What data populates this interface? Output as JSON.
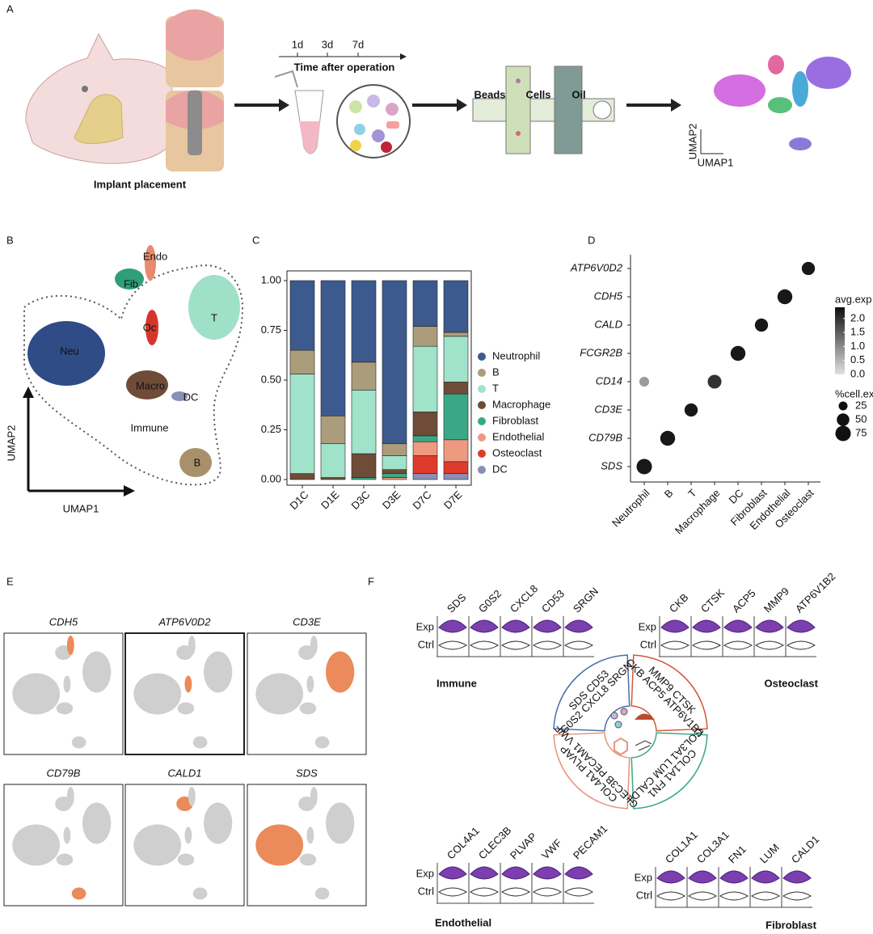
{
  "panels": [
    "A",
    "B",
    "C",
    "D",
    "E",
    "F"
  ],
  "workflow": {
    "caption": "Implant placement",
    "days": [
      "1d",
      "3d",
      "7d"
    ],
    "timeline": "Time after operation",
    "chip": [
      "Beads",
      "Cells",
      "Oil"
    ],
    "umap_y": "UMAP2",
    "umap_x": "UMAP1"
  },
  "umap": {
    "clusters": [
      "Endo",
      "Fib",
      "Oc",
      "T",
      "Neu",
      "Macro",
      "DC",
      "B"
    ],
    "group": "Immune",
    "y_label": "UMAP2",
    "x_label": "UMAP1"
  },
  "chart_data": [
    {
      "type": "bar",
      "stacked": true,
      "categories": [
        "D1C",
        "D1E",
        "D3C",
        "D3E",
        "D7C",
        "D7E"
      ],
      "series": [
        {
          "name": "Neutrophil",
          "color": "#3d5a8e",
          "values": [
            0.35,
            0.68,
            0.41,
            0.82,
            0.23,
            0.26
          ]
        },
        {
          "name": "B",
          "color": "#ab9c7c",
          "values": [
            0.12,
            0.14,
            0.14,
            0.06,
            0.1,
            0.02
          ]
        },
        {
          "name": "T",
          "color": "#a0e2ca",
          "values": [
            0.5,
            0.17,
            0.32,
            0.07,
            0.33,
            0.23
          ]
        },
        {
          "name": "Macrophage",
          "color": "#6e4c37",
          "values": [
            0.03,
            0.01,
            0.12,
            0.02,
            0.12,
            0.06
          ]
        },
        {
          "name": "Fibroblast",
          "color": "#3aa887",
          "values": [
            0,
            0,
            0.01,
            0.02,
            0.03,
            0.23
          ]
        },
        {
          "name": "Endothelial",
          "color": "#ee9a80",
          "values": [
            0,
            0,
            0,
            0.01,
            0.07,
            0.11
          ]
        },
        {
          "name": "Osteoclast",
          "color": "#de3b2b",
          "values": [
            0,
            0,
            0,
            0,
            0.09,
            0.06
          ]
        },
        {
          "name": "DC",
          "color": "#8a8fb6",
          "values": [
            0,
            0,
            0,
            0,
            0.03,
            0.03
          ]
        }
      ],
      "ylim": [
        0,
        1
      ],
      "yticks": [
        {
          "value": 0,
          "label": "0.00"
        },
        0.25,
        {
          "value": 0.5,
          "label": "0.50"
        },
        0.75,
        {
          "value": 1,
          "label": "1.00"
        }
      ]
    },
    {
      "type": "dot",
      "categories": [
        "Neutrophil",
        "B",
        "T",
        "Macrophage",
        "DC",
        "Fibroblast",
        "Endothelial",
        "Osteoclast"
      ],
      "y_categories": [
        "SDS",
        "CD79B",
        "CD3E",
        "CD14",
        "FCGR2B",
        "CALD",
        "CDH5",
        "ATP6V0D2"
      ],
      "x": [
        "Neutrophil",
        "Neutrophil",
        "B",
        "T",
        "Macrophage",
        "DC",
        "Fibroblast",
        "Endothelial",
        "Osteoclast"
      ],
      "y": [
        "SDS",
        "CD14",
        "CD79B",
        "CD3E",
        "CD14",
        "FCGR2B",
        "CALD",
        "CDH5",
        "ATP6V0D2"
      ],
      "values": [
        2.3,
        0.8,
        2.3,
        2.3,
        2.0,
        2.3,
        2.3,
        2.3,
        2.3
      ],
      "sizes": [
        75,
        30,
        70,
        55,
        60,
        70,
        55,
        70,
        55
      ],
      "color_title": "avg.exp",
      "clim": [
        0,
        2.4
      ],
      "cticks": [
        {
          "value": 0,
          "label": "0.0"
        },
        0.5,
        {
          "value": 1,
          "label": "1.0"
        },
        1.5,
        {
          "value": 2,
          "label": "2.0"
        }
      ],
      "size_title": "%cell.exp",
      "sticks": [
        25,
        50,
        75
      ]
    }
  ],
  "feature_plots": {
    "genes": [
      "CDH5",
      "ATP6V0D2",
      "CD3E",
      "CD79B",
      "CALD1",
      "SDS"
    ]
  },
  "violins": {
    "rows": [
      "Exp",
      "Ctrl"
    ],
    "groups": [
      {
        "name": "Immune",
        "color": "#4a6fa8",
        "genes": [
          "SDS",
          "G0S2",
          "CXCL8",
          "CD53",
          "SRGN"
        ],
        "ring": [
          "SDS CD53",
          "G0S2 CXCL8 SRGN"
        ]
      },
      {
        "name": "Osteoclast",
        "color": "#d4553a",
        "genes": [
          "CKB",
          "CTSK",
          "ACP5",
          "MMP9",
          "ATP6V1B2"
        ],
        "ring": [
          "MMP9 CTSK",
          "CKB ACP5 ATP6V1B2"
        ]
      },
      {
        "name": "Endothelial",
        "color": "#e8957a",
        "genes": [
          "COL4A1",
          "CLEC3B",
          "PLVAP",
          "VWF",
          "PECAM1"
        ],
        "ring": [
          "COL4A1 PLVAP",
          "CLEC3B PECAM1 VWF"
        ]
      },
      {
        "name": "Fibroblast",
        "color": "#3aa887",
        "genes": [
          "COL1A1",
          "COL3A1",
          "FN1",
          "LUM",
          "CALD1"
        ],
        "ring": [
          "COL1A1 FN1",
          "COL3A1 LUM CALD1"
        ]
      }
    ]
  }
}
